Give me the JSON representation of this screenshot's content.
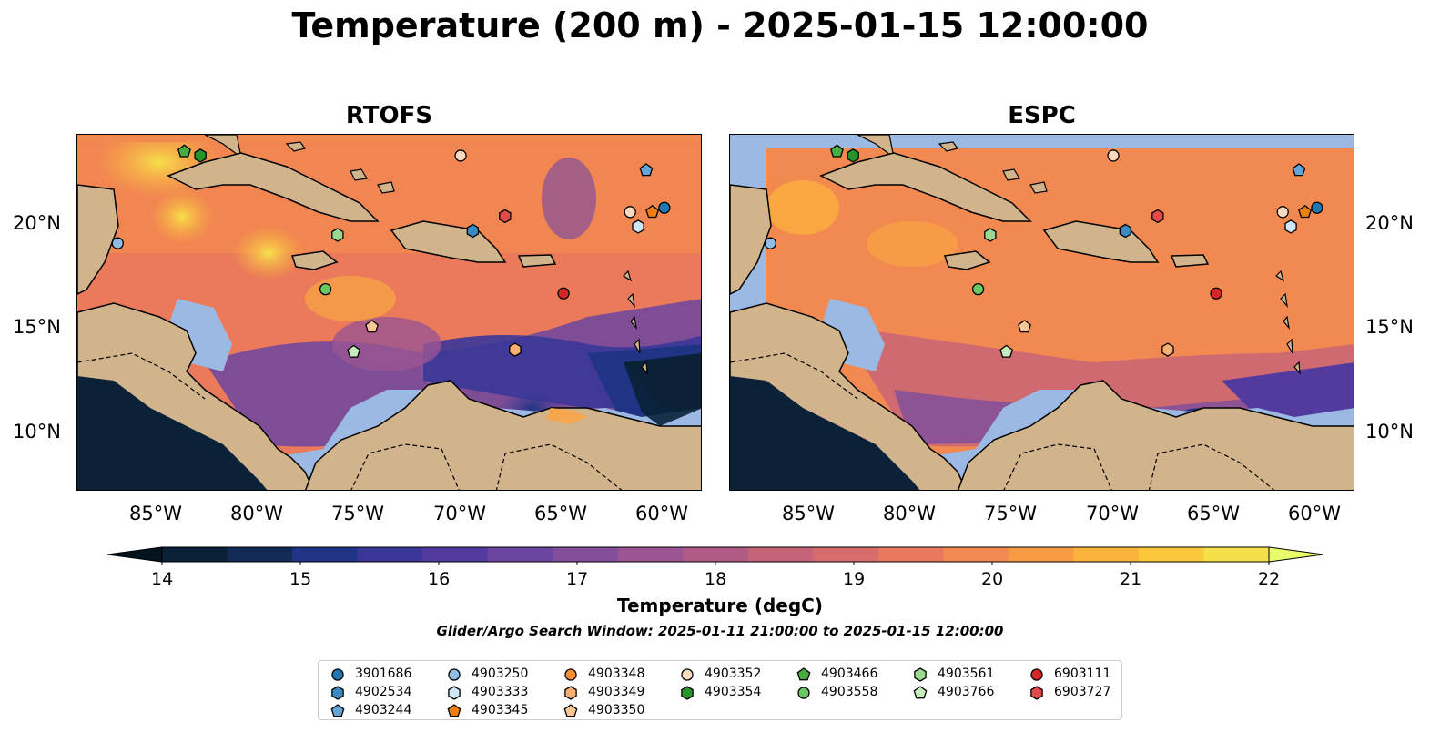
{
  "title": "Temperature (200 m) - 2025-01-15 12:00:00",
  "panels": [
    {
      "title": "RTOFS"
    },
    {
      "title": "ESPC"
    }
  ],
  "lat_labels": [
    "20°N",
    "15°N",
    "10°N"
  ],
  "lon_labels": [
    "85°W",
    "80°W",
    "75°W",
    "70°W",
    "65°W",
    "60°W"
  ],
  "colorbar": {
    "title": "Temperature (degC)",
    "ticks": [
      "14",
      "15",
      "16",
      "17",
      "18",
      "19",
      "20",
      "21",
      "22"
    ],
    "min": 14,
    "max": 22,
    "colors": [
      "#0a2138",
      "#122b56",
      "#1f3484",
      "#3a3798",
      "#533a9e",
      "#6c45a0",
      "#834f9b",
      "#9a5592",
      "#b05b86",
      "#c56379",
      "#d76c6c",
      "#e8795e",
      "#f28950",
      "#f89c44",
      "#fbb33c",
      "#fcc83b",
      "#f6e04a"
    ],
    "extend_low": "#03141f",
    "extend_high": "#e9fc6b"
  },
  "search_window": "Glider/Argo Search Window: 2025-01-11 21:00:00 to 2025-01-15 12:00:00",
  "legend": [
    {
      "id": "3901686",
      "shape": "circle",
      "color": "#1f77b4"
    },
    {
      "id": "4902534",
      "shape": "hexagon",
      "color": "#3a8ac4"
    },
    {
      "id": "4903244",
      "shape": "pentagon",
      "color": "#64a6d8"
    },
    {
      "id": "4903250",
      "shape": "circle",
      "color": "#8fbde6"
    },
    {
      "id": "4903333",
      "shape": "hexagon",
      "color": "#cfe6f8"
    },
    {
      "id": "4903345",
      "shape": "pentagon",
      "color": "#ee7d12"
    },
    {
      "id": "4903348",
      "shape": "circle",
      "color": "#f6913a"
    },
    {
      "id": "4903349",
      "shape": "hexagon",
      "color": "#f9b073"
    },
    {
      "id": "4903350",
      "shape": "pentagon",
      "color": "#fbc797"
    },
    {
      "id": "4903352",
      "shape": "circle",
      "color": "#fbdbc0"
    },
    {
      "id": "4903354",
      "shape": "hexagon",
      "color": "#27952a"
    },
    {
      "id": "4903466",
      "shape": "pentagon",
      "color": "#48ad41"
    },
    {
      "id": "4903558",
      "shape": "circle",
      "color": "#6bc764"
    },
    {
      "id": "4903561",
      "shape": "hexagon",
      "color": "#9bd890"
    },
    {
      "id": "4903766",
      "shape": "pentagon",
      "color": "#c6edbd"
    },
    {
      "id": "6903111",
      "shape": "circle",
      "color": "#d62728"
    },
    {
      "id": "6903727",
      "shape": "hexagon",
      "color": "#e34a4a"
    }
  ],
  "floats": [
    {
      "id": "3901686",
      "lon": -59.9,
      "lat": 20.8
    },
    {
      "id": "4902534",
      "lon": -69.4,
      "lat": 19.7
    },
    {
      "id": "4903244",
      "lon": -60.8,
      "lat": 22.6
    },
    {
      "id": "4903250",
      "lon": -87.0,
      "lat": 19.1
    },
    {
      "id": "4903333",
      "lon": -61.2,
      "lat": 19.9
    },
    {
      "id": "4903345",
      "lon": -60.5,
      "lat": 20.6
    },
    {
      "id": "4903349",
      "lon": -67.3,
      "lat": 14.0
    },
    {
      "id": "4903350",
      "lon": -74.4,
      "lat": 15.1
    },
    {
      "id": "4903352",
      "lon": -61.6,
      "lat": 20.6
    },
    {
      "id": "4903352",
      "lon": -70.0,
      "lat": 23.3
    },
    {
      "id": "4903354",
      "lon": -82.9,
      "lat": 23.3
    },
    {
      "id": "4903466",
      "lon": -83.7,
      "lat": 23.5
    },
    {
      "id": "4903558",
      "lon": -76.7,
      "lat": 16.9
    },
    {
      "id": "4903561",
      "lon": -76.1,
      "lat": 19.5
    },
    {
      "id": "4903766",
      "lon": -75.3,
      "lat": 13.9
    },
    {
      "id": "6903111",
      "lon": -64.9,
      "lat": 16.7
    },
    {
      "id": "6903727",
      "lon": -67.8,
      "lat": 20.4
    }
  ]
}
